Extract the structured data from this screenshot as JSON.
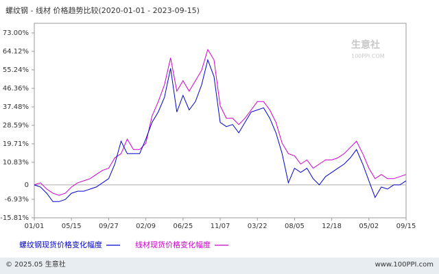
{
  "chart_data": {
    "type": "line",
    "title": "螺纹钢 - 线材 价格趋势比较(2020-01-01 - 2023-09-15)",
    "watermark": "生意社",
    "watermark_sub": "100PPI.COM",
    "footer_left": "© 2025.05 生意社",
    "footer_right": "www.100PPI.com",
    "categories": [
      "01/01",
      null,
      null,
      null,
      null,
      null,
      "05/15",
      null,
      null,
      null,
      null,
      null,
      "09/27",
      null,
      null,
      null,
      null,
      null,
      "02/09",
      null,
      null,
      null,
      null,
      null,
      "06/25",
      null,
      null,
      null,
      null,
      null,
      "11/07",
      null,
      null,
      null,
      null,
      null,
      "03/22",
      null,
      null,
      null,
      null,
      null,
      "08/05",
      null,
      null,
      null,
      null,
      null,
      "12/18",
      null,
      null,
      null,
      null,
      null,
      "05/02",
      null,
      null,
      null,
      null,
      null,
      "09/15"
    ],
    "series": [
      {
        "name": "螺纹钢现货价格变化幅度",
        "color": "#0000cc",
        "values": [
          0,
          -1,
          -4,
          -8,
          -8,
          -7,
          -4,
          -3,
          -3,
          -2,
          -1,
          1,
          3,
          10,
          21,
          15,
          15,
          15,
          22,
          30,
          35,
          42,
          56,
          35,
          43,
          36,
          40,
          48,
          60,
          52,
          30,
          28,
          29,
          25,
          30,
          35,
          36,
          37,
          32,
          25,
          15,
          1,
          8,
          6,
          8,
          3,
          0,
          4,
          6,
          8,
          10,
          13,
          17,
          10,
          2,
          -6,
          -1,
          -2,
          0,
          0,
          2
        ]
      },
      {
        "name": "线材现货价格变化幅度",
        "color": "#cc00cc",
        "values": [
          0,
          1,
          -2,
          -4,
          -5,
          -4,
          -1,
          1,
          2,
          3,
          5,
          7,
          8,
          13,
          15,
          22,
          17,
          17,
          20,
          33,
          40,
          48,
          61,
          45,
          50,
          45,
          50,
          55,
          65,
          60,
          38,
          32,
          32,
          29,
          32,
          36,
          40,
          40,
          36,
          30,
          20,
          15,
          14,
          10,
          12,
          8,
          10,
          12,
          12,
          13,
          15,
          18,
          21,
          15,
          8,
          3,
          5,
          3,
          3,
          4,
          5
        ]
      }
    ],
    "ylim": [
      -15.81,
      73
    ],
    "yticks": [
      {
        "value": -15.81,
        "label": "-15.81%"
      },
      {
        "value": -6.93,
        "label": "-6.93%"
      },
      0,
      {
        "value": 10.83,
        "label": "10.83%"
      },
      {
        "value": 19.71,
        "label": "19.71%"
      },
      {
        "value": 28.59,
        "label": "28.59%"
      },
      {
        "value": 37.48,
        "label": "37.48%"
      },
      {
        "value": 46.36,
        "label": "46.36%"
      },
      {
        "value": 55.24,
        "label": "55.24%"
      },
      {
        "value": 64.12,
        "label": "64.12%"
      },
      {
        "value": 73,
        "label": "73.00%"
      }
    ]
  }
}
